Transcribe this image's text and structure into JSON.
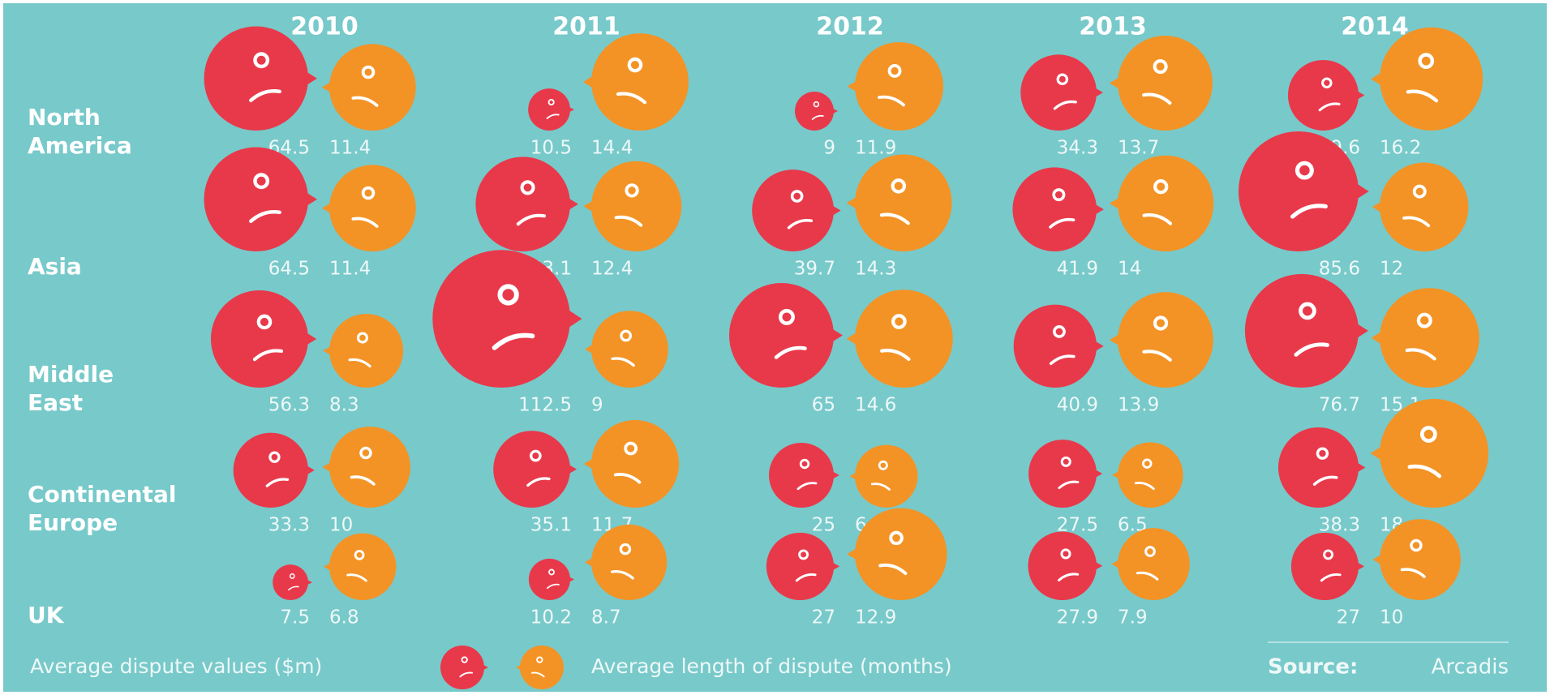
{
  "chart_data": {
    "type": "bubble",
    "categories": [
      "2010",
      "2011",
      "2012",
      "2013",
      "2014"
    ],
    "rows": [
      "North America",
      "Asia",
      "Middle East",
      "Continental Europe",
      "UK"
    ],
    "series": [
      {
        "name": "Average dispute values ($m)",
        "color": "#e8394a",
        "values": [
          [
            64.5,
            10.5,
            9,
            34.3,
            29.6
          ],
          [
            64.5,
            53.1,
            39.7,
            41.9,
            85.6
          ],
          [
            56.3,
            112.5,
            65,
            40.9,
            76.7
          ],
          [
            33.3,
            35.1,
            25,
            27.5,
            38.3
          ],
          [
            7.5,
            10.2,
            27,
            27.9,
            27
          ]
        ]
      },
      {
        "name": "Average length of dispute (months)",
        "color": "#f39325",
        "values": [
          [
            11.4,
            14.4,
            11.9,
            13.7,
            16.2
          ],
          [
            11.4,
            12.4,
            14.3,
            14,
            12
          ],
          [
            8.3,
            9,
            14.6,
            13.9,
            15.1
          ],
          [
            10,
            11.7,
            6,
            6.5,
            18
          ],
          [
            6.8,
            8.7,
            12.9,
            7.9,
            10
          ]
        ]
      }
    ],
    "source_label": "Source:",
    "source": "Arcadis"
  }
}
